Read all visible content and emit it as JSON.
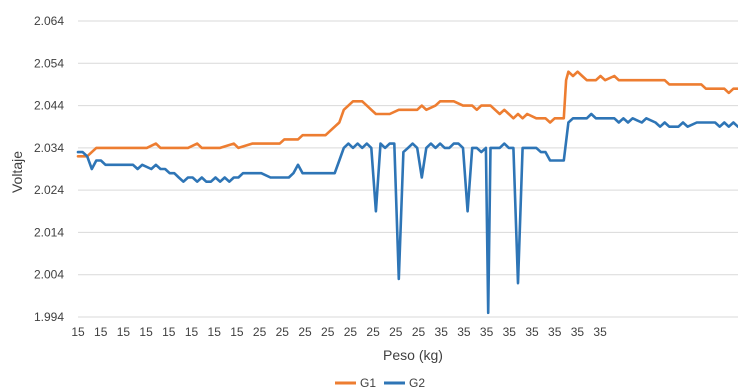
{
  "chart_data": {
    "type": "line",
    "xlabel": "Peso (kg)",
    "ylabel": "Voltaje",
    "ylim": [
      1.994,
      2.064
    ],
    "yticks": [
      "1.994",
      "2.004",
      "2.014",
      "2.024",
      "2.034",
      "2.044",
      "2.054",
      "2.064"
    ],
    "xtick_labels": [
      "15",
      "15",
      "15",
      "15",
      "15",
      "15",
      "15",
      "15",
      "25",
      "25",
      "25",
      "25",
      "25",
      "25",
      "25",
      "25",
      "35",
      "35",
      "35",
      "35",
      "35",
      "35",
      "35",
      "35"
    ],
    "grid": "horizontal",
    "legend_position": "bottom",
    "colors": {
      "G1": "#ED7D31",
      "G2": "#2E75B6",
      "grid": "#D9D9D9"
    },
    "series": [
      {
        "name": "G1",
        "color": "#ED7D31",
        "points": [
          [
            0,
            2.032
          ],
          [
            2,
            2.032
          ],
          [
            3,
            2.033
          ],
          [
            4,
            2.034
          ],
          [
            10,
            2.034
          ],
          [
            15,
            2.034
          ],
          [
            17,
            2.035
          ],
          [
            18,
            2.034
          ],
          [
            24,
            2.034
          ],
          [
            26,
            2.035
          ],
          [
            27,
            2.034
          ],
          [
            31,
            2.034
          ],
          [
            34,
            2.035
          ],
          [
            35,
            2.034
          ],
          [
            38,
            2.035
          ],
          [
            40,
            2.035
          ],
          [
            44,
            2.035
          ],
          [
            45,
            2.036
          ],
          [
            48,
            2.036
          ],
          [
            49,
            2.037
          ],
          [
            54,
            2.037
          ],
          [
            55,
            2.038
          ],
          [
            57,
            2.04
          ],
          [
            58,
            2.043
          ],
          [
            59,
            2.044
          ],
          [
            60,
            2.045
          ],
          [
            61,
            2.045
          ],
          [
            62,
            2.045
          ],
          [
            63,
            2.044
          ],
          [
            64,
            2.043
          ],
          [
            65,
            2.042
          ],
          [
            68,
            2.042
          ],
          [
            70,
            2.043
          ],
          [
            72,
            2.043
          ],
          [
            74,
            2.043
          ],
          [
            75,
            2.044
          ],
          [
            76,
            2.043
          ],
          [
            78,
            2.044
          ],
          [
            79,
            2.045
          ],
          [
            82,
            2.045
          ],
          [
            84,
            2.044
          ],
          [
            86,
            2.044
          ],
          [
            87,
            2.043
          ],
          [
            88,
            2.044
          ],
          [
            90,
            2.044
          ],
          [
            91,
            2.043
          ],
          [
            92,
            2.042
          ],
          [
            93,
            2.043
          ],
          [
            94,
            2.042
          ],
          [
            95,
            2.041
          ],
          [
            96,
            2.042
          ],
          [
            97,
            2.041
          ],
          [
            98,
            2.042
          ],
          [
            100,
            2.041
          ],
          [
            102,
            2.041
          ],
          [
            103,
            2.04
          ],
          [
            104,
            2.041
          ],
          [
            106,
            2.041
          ],
          [
            106.5,
            2.05
          ],
          [
            107,
            2.052
          ],
          [
            108,
            2.051
          ],
          [
            109,
            2.052
          ],
          [
            110,
            2.051
          ],
          [
            111,
            2.05
          ],
          [
            113,
            2.05
          ],
          [
            114,
            2.051
          ],
          [
            115,
            2.05
          ],
          [
            117,
            2.051
          ],
          [
            118,
            2.05
          ],
          [
            120,
            2.05
          ],
          [
            122,
            2.05
          ],
          [
            126,
            2.05
          ],
          [
            128,
            2.05
          ],
          [
            129,
            2.049
          ],
          [
            134,
            2.049
          ],
          [
            136,
            2.049
          ],
          [
            137,
            2.048
          ],
          [
            139,
            2.048
          ],
          [
            141,
            2.048
          ],
          [
            142,
            2.047
          ],
          [
            143,
            2.048
          ],
          [
            144,
            2.048
          ]
        ]
      },
      {
        "name": "G2",
        "color": "#2E75B6",
        "points": [
          [
            0,
            2.033
          ],
          [
            1,
            2.033
          ],
          [
            2,
            2.032
          ],
          [
            3,
            2.029
          ],
          [
            4,
            2.031
          ],
          [
            5,
            2.031
          ],
          [
            6,
            2.03
          ],
          [
            12,
            2.03
          ],
          [
            13,
            2.029
          ],
          [
            14,
            2.03
          ],
          [
            16,
            2.029
          ],
          [
            17,
            2.03
          ],
          [
            18,
            2.029
          ],
          [
            19,
            2.029
          ],
          [
            20,
            2.028
          ],
          [
            21,
            2.028
          ],
          [
            22,
            2.027
          ],
          [
            23,
            2.026
          ],
          [
            24,
            2.027
          ],
          [
            25,
            2.027
          ],
          [
            26,
            2.026
          ],
          [
            27,
            2.027
          ],
          [
            28,
            2.026
          ],
          [
            29,
            2.026
          ],
          [
            30,
            2.027
          ],
          [
            31,
            2.026
          ],
          [
            32,
            2.027
          ],
          [
            33,
            2.026
          ],
          [
            34,
            2.027
          ],
          [
            35,
            2.027
          ],
          [
            36,
            2.028
          ],
          [
            40,
            2.028
          ],
          [
            42,
            2.027
          ],
          [
            43,
            2.027
          ],
          [
            46,
            2.027
          ],
          [
            47,
            2.028
          ],
          [
            48,
            2.03
          ],
          [
            49,
            2.028
          ],
          [
            56,
            2.028
          ],
          [
            57,
            2.031
          ],
          [
            58,
            2.034
          ],
          [
            59,
            2.035
          ],
          [
            60,
            2.034
          ],
          [
            61,
            2.035
          ],
          [
            62,
            2.034
          ],
          [
            63,
            2.035
          ],
          [
            64,
            2.034
          ],
          [
            65,
            2.019
          ],
          [
            66,
            2.035
          ],
          [
            67,
            2.034
          ],
          [
            68,
            2.035
          ],
          [
            69,
            2.035
          ],
          [
            70,
            2.003
          ],
          [
            71,
            2.033
          ],
          [
            72,
            2.034
          ],
          [
            73,
            2.035
          ],
          [
            74,
            2.034
          ],
          [
            75,
            2.027
          ],
          [
            76,
            2.034
          ],
          [
            77,
            2.035
          ],
          [
            78,
            2.034
          ],
          [
            79,
            2.035
          ],
          [
            80,
            2.034
          ],
          [
            81,
            2.034
          ],
          [
            82,
            2.035
          ],
          [
            83,
            2.035
          ],
          [
            84,
            2.034
          ],
          [
            85,
            2.019
          ],
          [
            86,
            2.034
          ],
          [
            87,
            2.034
          ],
          [
            88,
            2.033
          ],
          [
            89,
            2.034
          ],
          [
            89.5,
            1.995
          ],
          [
            90,
            2.034
          ],
          [
            91,
            2.034
          ],
          [
            92,
            2.034
          ],
          [
            93,
            2.035
          ],
          [
            94,
            2.034
          ],
          [
            95,
            2.034
          ],
          [
            96,
            2.002
          ],
          [
            97,
            2.034
          ],
          [
            98,
            2.034
          ],
          [
            100,
            2.034
          ],
          [
            101,
            2.033
          ],
          [
            102,
            2.033
          ],
          [
            103,
            2.031
          ],
          [
            105,
            2.031
          ],
          [
            106,
            2.031
          ],
          [
            107,
            2.04
          ],
          [
            108,
            2.041
          ],
          [
            111,
            2.041
          ],
          [
            112,
            2.042
          ],
          [
            113,
            2.041
          ],
          [
            117,
            2.041
          ],
          [
            118,
            2.04
          ],
          [
            119,
            2.041
          ],
          [
            120,
            2.04
          ],
          [
            121,
            2.041
          ],
          [
            123,
            2.04
          ],
          [
            124,
            2.041
          ],
          [
            126,
            2.04
          ],
          [
            127,
            2.039
          ],
          [
            128,
            2.04
          ],
          [
            129,
            2.039
          ],
          [
            131,
            2.039
          ],
          [
            132,
            2.04
          ],
          [
            133,
            2.039
          ],
          [
            135,
            2.04
          ],
          [
            137,
            2.04
          ],
          [
            139,
            2.04
          ],
          [
            140,
            2.039
          ],
          [
            141,
            2.04
          ],
          [
            142,
            2.039
          ],
          [
            143,
            2.04
          ],
          [
            144,
            2.039
          ]
        ]
      }
    ]
  }
}
